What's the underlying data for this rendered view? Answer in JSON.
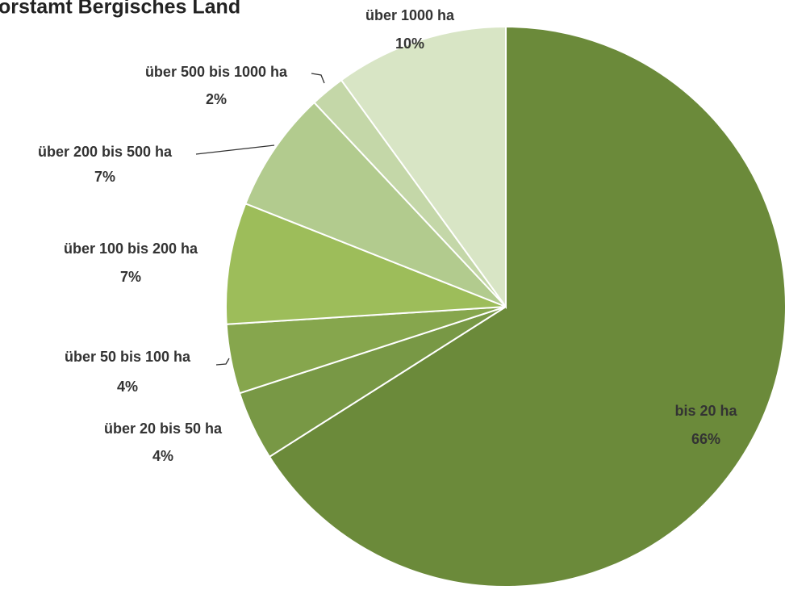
{
  "chart_data": {
    "type": "pie",
    "title": "orstamt  Bergisches Land",
    "categories": [
      "bis 20 ha",
      "über 20 bis 50 ha",
      "über 50 bis 100 ha",
      "über 100 bis 200 ha",
      "über 200 bis 500 ha",
      "über 500 bis 1000 ha",
      "über 1000 ha"
    ],
    "values": [
      66,
      4,
      4,
      7,
      7,
      2,
      10
    ],
    "value_labels": [
      "66%",
      "4%",
      "4%",
      "7%",
      "7%",
      "2%",
      "10%"
    ],
    "colors": [
      "#6b8a3a",
      "#789845",
      "#86a64d",
      "#9dbd5a",
      "#b2cb8e",
      "#c4d7a8",
      "#d8e5c5"
    ]
  }
}
